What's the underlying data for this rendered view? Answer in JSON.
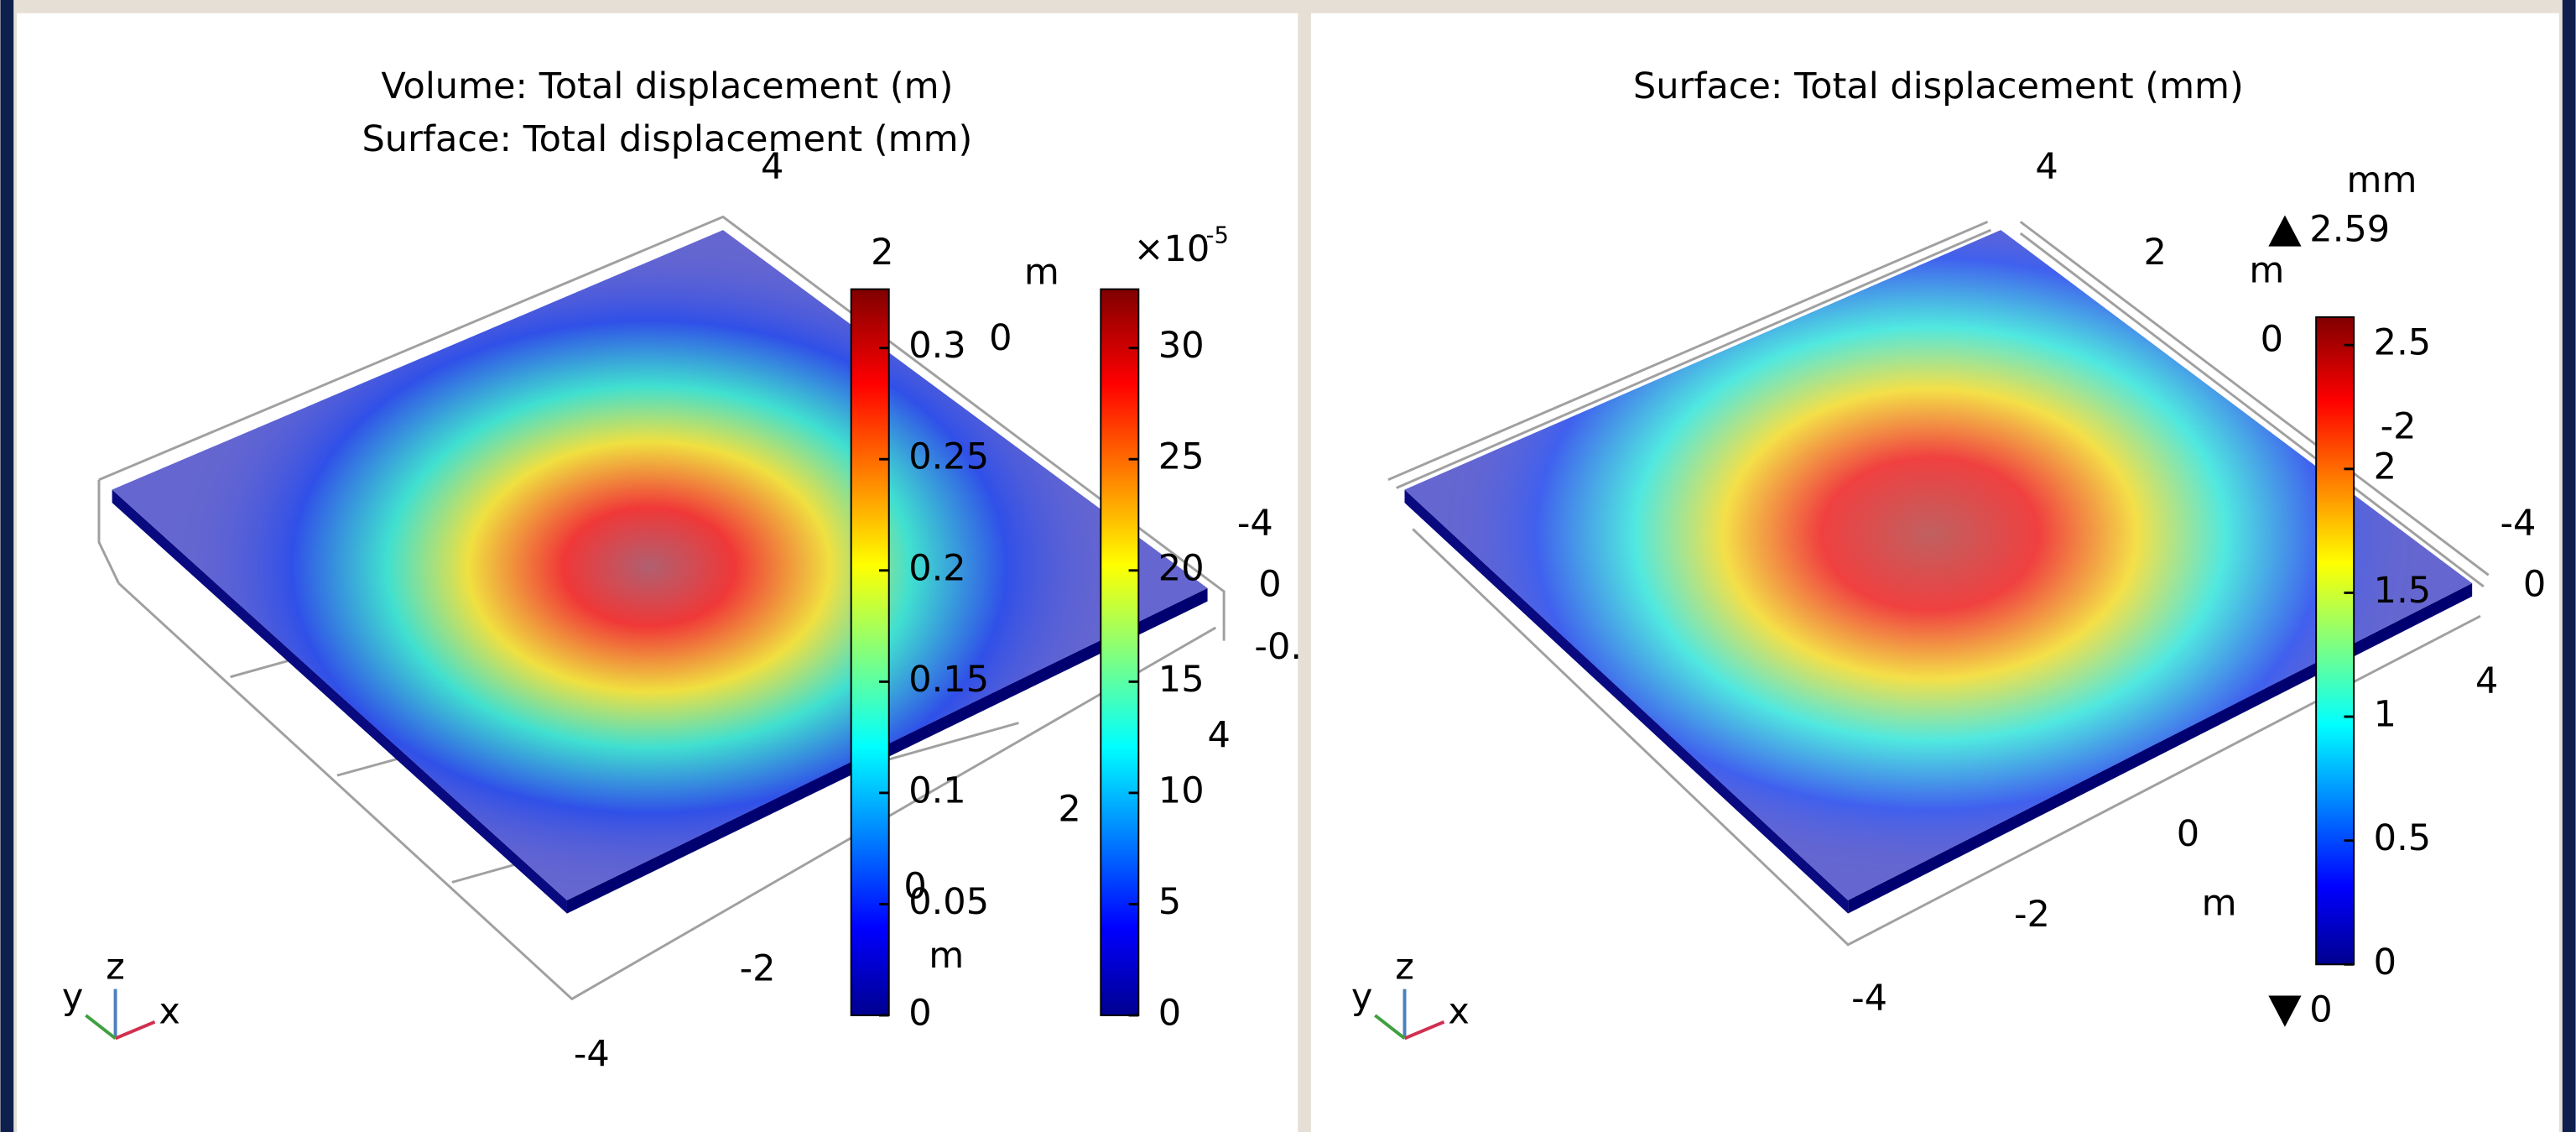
{
  "panels": [
    {
      "title_lines": [
        "Volume: Total displacement (m)",
        "Surface: Total displacement (mm)"
      ],
      "axis_labels": [
        "4",
        "2",
        "m",
        "0",
        "-4",
        "0",
        "-0.",
        "4",
        "2",
        "0",
        "m",
        "-2",
        "-4"
      ],
      "colorbars": [
        {
          "ticks": [
            0,
            0.05,
            0.1,
            0.15,
            0.2,
            0.25,
            0.3
          ]
        },
        {
          "multiplier": "×10",
          "exponent": "-5",
          "ticks": [
            0,
            5,
            10,
            15,
            20,
            25,
            30
          ]
        }
      ]
    },
    {
      "title_lines": [
        "Surface: Total displacement (mm)"
      ],
      "axis_labels": [
        "4",
        "2",
        "m",
        "0",
        "-2",
        "-4",
        "0",
        "4",
        "0",
        "m",
        "-2",
        "-4"
      ],
      "colorbars": [
        {
          "unit": "mm",
          "max_label": "2.59",
          "min_label": "0",
          "ticks": [
            0,
            0.5,
            1,
            1.5,
            2,
            2.5
          ]
        }
      ]
    }
  ],
  "triad": {
    "z": "z",
    "y": "y",
    "x": "x"
  }
}
